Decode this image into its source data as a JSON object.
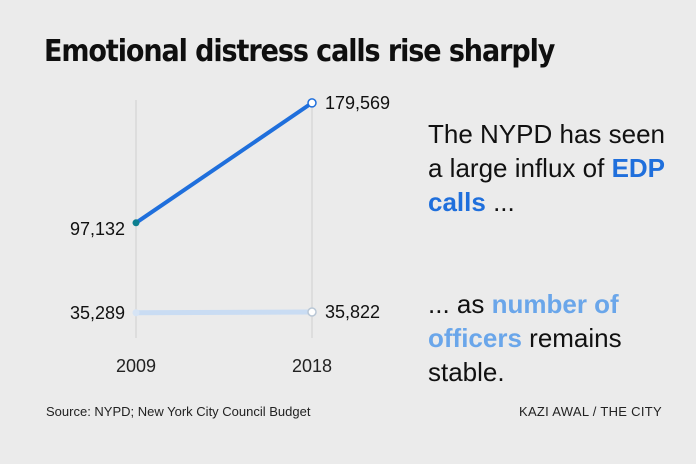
{
  "title": "Emotional distress calls rise sharply",
  "chart_data": {
    "type": "line",
    "title": "Emotional distress calls rise sharply",
    "x": [
      "2009",
      "2018"
    ],
    "series": [
      {
        "name": "EDP calls",
        "values": [
          97132,
          179569
        ],
        "labels": [
          "97,132",
          "179,569"
        ],
        "color": "#1f6fdc"
      },
      {
        "name": "number of officers",
        "values": [
          35289,
          35822
        ],
        "labels": [
          "35,289",
          "35,822"
        ],
        "color": "#c9dcf3"
      }
    ],
    "ylim": [
      20000,
      185000
    ],
    "grid": false,
    "legend": "none"
  },
  "annotation_top": {
    "pre": "The NYPD has seen a large influx of",
    "highlight": "EDP calls",
    "post": "..."
  },
  "annotation_bottom": {
    "pre": "... as",
    "highlight": "number of officers",
    "post": "remains stable."
  },
  "source": "Source: NYPD; New York City Council Budget",
  "credit": "KAZI AWAL / THE CITY"
}
